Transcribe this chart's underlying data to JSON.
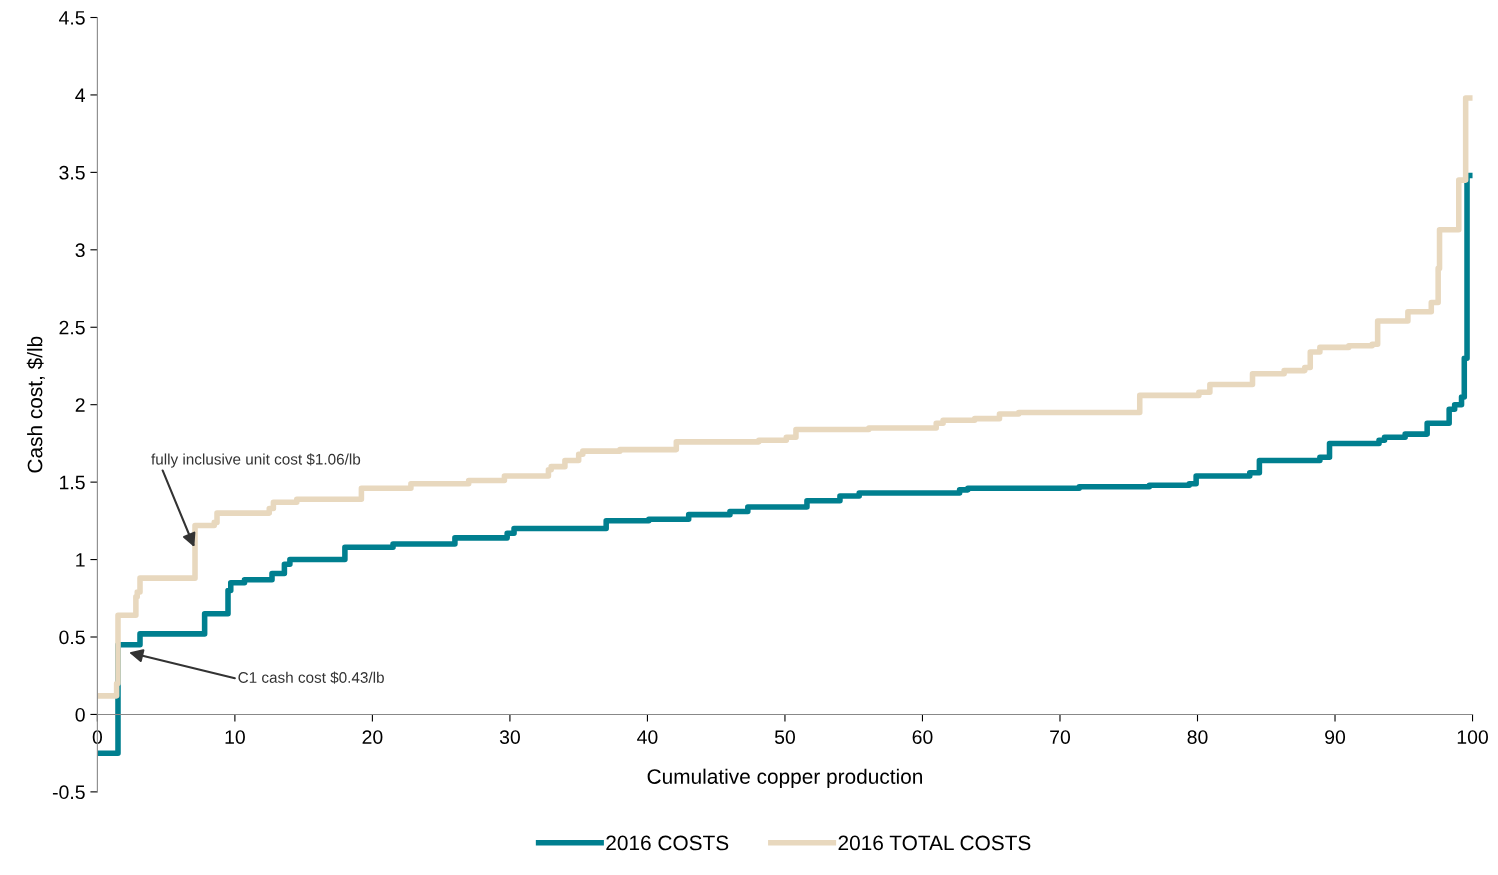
{
  "chart_data": {
    "type": "step",
    "xlabel": "Cumulative copper production",
    "ylabel": "Cash cost, $/lb",
    "xlim": [
      0,
      100
    ],
    "xticks": [
      0,
      10,
      20,
      30,
      40,
      50,
      60,
      70,
      80,
      90,
      100
    ],
    "ylim": [
      -0.5,
      4.5
    ],
    "yticks": [
      -0.5,
      0,
      0.5,
      1,
      1.5,
      2,
      2.5,
      3,
      3.5,
      4,
      4.5
    ],
    "grid": false,
    "legend": "bottom",
    "marker": "none",
    "line_style": "solid",
    "series": [
      {
        "name": "2016 COSTS",
        "color": "#007f8f",
        "x": [
          0,
          1.5,
          3.1,
          7.8,
          9.5,
          9.7,
          10.7,
          12.7,
          13.6,
          14,
          18,
          21.5,
          26,
          29.8,
          30.3,
          37,
          40.1,
          43,
          46,
          47.3,
          51.6,
          54,
          55.4,
          62.7,
          63.3,
          71.4,
          76.5,
          79.4,
          79.9,
          83.8,
          84.5,
          88.9,
          89.6,
          93.2,
          93.6,
          95.1,
          96.7,
          98.3,
          98.7,
          99.2,
          99.4,
          99.6,
          100
        ],
        "values": [
          -0.25,
          0.45,
          0.52,
          0.65,
          0.8,
          0.85,
          0.87,
          0.91,
          0.97,
          1.0,
          1.08,
          1.1,
          1.14,
          1.17,
          1.2,
          1.25,
          1.26,
          1.29,
          1.31,
          1.34,
          1.38,
          1.41,
          1.43,
          1.45,
          1.46,
          1.47,
          1.48,
          1.49,
          1.54,
          1.56,
          1.64,
          1.66,
          1.75,
          1.77,
          1.79,
          1.81,
          1.88,
          1.97,
          2.0,
          2.05,
          2.3,
          3.48,
          3.48
        ]
      },
      {
        "name": "2016 TOTAL COSTS",
        "color": "#e8d8be",
        "x": [
          0,
          1.4,
          1.5,
          2.8,
          2.9,
          3.1,
          7.1,
          8.5,
          8.7,
          12.5,
          12.8,
          14.5,
          19.2,
          22.8,
          27,
          29.6,
          32.8,
          33,
          34,
          35,
          35.3,
          38,
          42.1,
          48.1,
          50.1,
          50.8,
          56.1,
          61,
          61.5,
          63.8,
          65.6,
          67,
          75.8,
          80.1,
          80.9,
          84,
          86.3,
          87.8,
          88.2,
          88.9,
          91,
          92.7,
          93.1,
          95.3,
          97,
          97.5,
          97.6,
          99,
          99.5,
          100
        ],
        "values": [
          0.12,
          0.2,
          0.64,
          0.76,
          0.79,
          0.88,
          1.22,
          1.24,
          1.3,
          1.33,
          1.37,
          1.39,
          1.46,
          1.49,
          1.51,
          1.54,
          1.58,
          1.6,
          1.64,
          1.68,
          1.7,
          1.71,
          1.76,
          1.77,
          1.79,
          1.84,
          1.85,
          1.88,
          1.9,
          1.91,
          1.94,
          1.95,
          2.06,
          2.08,
          2.13,
          2.2,
          2.22,
          2.24,
          2.34,
          2.37,
          2.38,
          2.39,
          2.54,
          2.6,
          2.66,
          2.88,
          3.13,
          3.45,
          3.98,
          3.98
        ]
      }
    ],
    "annotations": [
      {
        "text": "fully inclusive unit cost $1.06/lb",
        "x": 7.05,
        "y": 1.08
      },
      {
        "text": "C1 cash cost $0.43/lb",
        "x": 2.3,
        "y": 0.4
      }
    ]
  }
}
